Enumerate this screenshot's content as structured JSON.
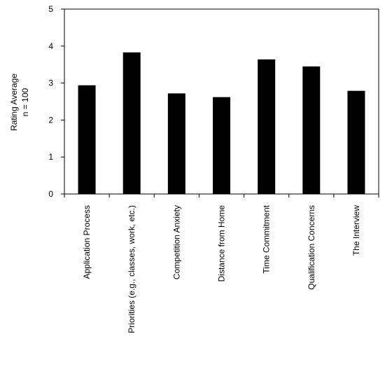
{
  "chart_data": {
    "type": "bar",
    "title": "",
    "xlabel": "",
    "ylabel": "Rating Average",
    "ylabel_line2": "n = 100",
    "categories": [
      "Application Process",
      "Priorities (e.g., classes, work, etc.)",
      "Competition Anxiety",
      "Distance from Home",
      "Time Commitment",
      "Qualification Concerns",
      "The Interview"
    ],
    "values": [
      2.94,
      3.83,
      2.72,
      2.62,
      3.64,
      3.45,
      2.79
    ],
    "yticks": [
      0,
      1,
      2,
      3,
      4,
      5
    ],
    "ylim": [
      0,
      5
    ],
    "grid": false,
    "legend": "none",
    "bar_color": "#000000"
  }
}
